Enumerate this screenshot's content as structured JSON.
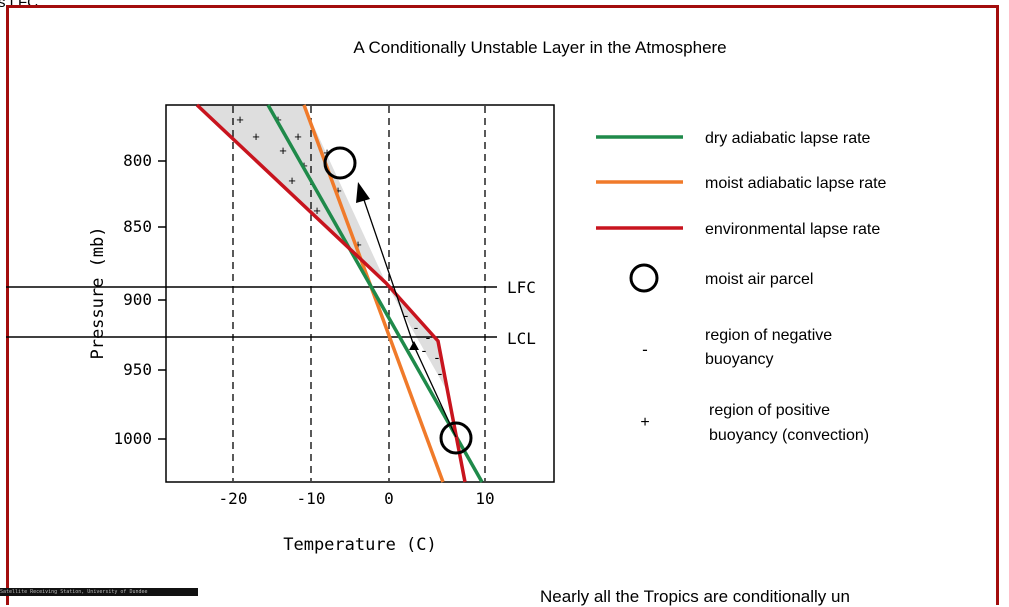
{
  "header_snippet": "s LFC.",
  "footer_snippet": "Nearly all the Tropics are conditionally un",
  "watermark_text": "Satellite Receiving Station, University of Dundee",
  "diagram": {
    "title": "A Conditionally Unstable Layer in the Atmosphere",
    "ylabel": "Pressure (mb)",
    "xlabel": "Temperature (C)",
    "x_ticks": [
      "-20",
      "-10",
      "0",
      "10"
    ],
    "y_ticks": [
      "800",
      "850",
      "900",
      "950",
      "1000"
    ],
    "level_labels": {
      "lfc": "LFC",
      "lcl": "LCL"
    },
    "positive_symbol": "+",
    "negative_symbol": "-",
    "colors": {
      "dry": "#1f8a4a",
      "moist": "#f07a2a",
      "environment": "#c8141e",
      "frame": "#a30d0d",
      "shade": "#dedede"
    }
  },
  "legend": {
    "dry": "dry adiabatic lapse rate",
    "moist": "moist adiabatic lapse rate",
    "environment": "environmental lapse rate",
    "parcel": "moist air parcel",
    "negative_line1": "region of negative",
    "negative_line2": "buoyancy",
    "positive_line1": "region of positive",
    "positive_line2": "buoyancy (convection)"
  }
}
